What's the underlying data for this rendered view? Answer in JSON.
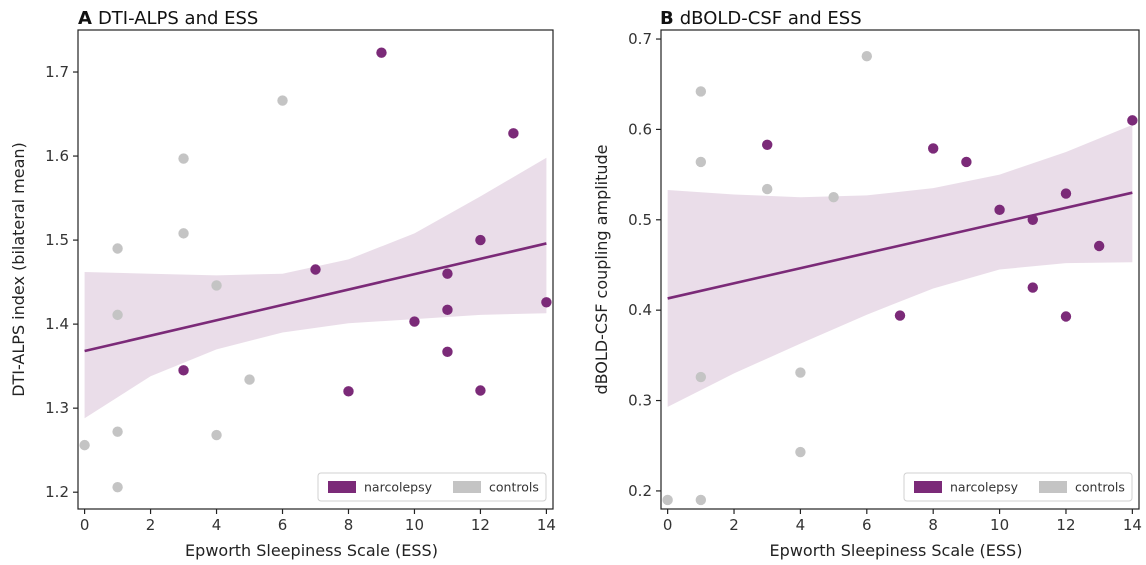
{
  "chart_data": [
    {
      "type": "scatter",
      "panel": "A",
      "title": "DTI-ALPS and ESS",
      "xlabel": "Epworth Sleepiness Scale (ESS)",
      "ylabel": "DTI-ALPS index (bilateral mean)",
      "xlim": [
        -0.2,
        14.2
      ],
      "ylim": [
        1.18,
        1.75
      ],
      "xticks": [
        "0",
        "2",
        "4",
        "6",
        "8",
        "10",
        "12",
        "14"
      ],
      "yticks": [
        "1.2",
        "1.3",
        "1.4",
        "1.5",
        "1.6",
        "1.7"
      ],
      "grid": false,
      "legend_position": "bottom-right",
      "series": [
        {
          "name": "narcolepsy",
          "color": "#7b2a78",
          "points": [
            [
              3,
              1.345
            ],
            [
              7,
              1.465
            ],
            [
              8,
              1.32
            ],
            [
              9,
              1.723
            ],
            [
              10,
              1.403
            ],
            [
              11,
              1.46
            ],
            [
              11,
              1.417
            ],
            [
              11,
              1.367
            ],
            [
              12,
              1.5
            ],
            [
              12,
              1.321
            ],
            [
              13,
              1.627
            ],
            [
              14,
              1.426
            ]
          ]
        },
        {
          "name": "controls",
          "color": "#c4c4c4",
          "points": [
            [
              0,
              1.256
            ],
            [
              1,
              1.49
            ],
            [
              1,
              1.411
            ],
            [
              1,
              1.272
            ],
            [
              1,
              1.206
            ],
            [
              3,
              1.597
            ],
            [
              3,
              1.508
            ],
            [
              4,
              1.446
            ],
            [
              4,
              1.268
            ],
            [
              5,
              1.334
            ],
            [
              6,
              1.666
            ]
          ]
        }
      ],
      "regression": {
        "color": "#7b2a78",
        "x": [
          0,
          14
        ],
        "y": [
          1.368,
          1.496
        ]
      },
      "ci_band": {
        "color": "#7b2a78",
        "x": [
          0,
          2,
          4,
          6,
          8,
          10,
          12,
          14
        ],
        "lower": [
          1.288,
          1.338,
          1.37,
          1.39,
          1.401,
          1.406,
          1.411,
          1.413
        ],
        "upper": [
          1.462,
          1.46,
          1.458,
          1.46,
          1.477,
          1.508,
          1.552,
          1.598
        ]
      }
    },
    {
      "type": "scatter",
      "panel": "B",
      "title": "dBOLD-CSF and ESS",
      "xlabel": "Epworth Sleepiness Scale (ESS)",
      "ylabel": "dBOLD-CSF coupling amplitude",
      "xlim": [
        -0.2,
        14.2
      ],
      "ylim": [
        0.18,
        0.71
      ],
      "xticks": [
        "0",
        "2",
        "4",
        "6",
        "8",
        "10",
        "12",
        "14"
      ],
      "yticks": [
        "0.2",
        "0.3",
        "0.4",
        "0.5",
        "0.6",
        "0.7"
      ],
      "grid": false,
      "legend_position": "bottom-right",
      "series": [
        {
          "name": "narcolepsy",
          "color": "#7b2a78",
          "points": [
            [
              3,
              0.583
            ],
            [
              7,
              0.394
            ],
            [
              8,
              0.579
            ],
            [
              9,
              0.564
            ],
            [
              10,
              0.511
            ],
            [
              11,
              0.5
            ],
            [
              11,
              0.425
            ],
            [
              12,
              0.529
            ],
            [
              12,
              0.393
            ],
            [
              13,
              0.471
            ],
            [
              14,
              0.61
            ]
          ]
        },
        {
          "name": "controls",
          "color": "#c4c4c4",
          "points": [
            [
              0,
              0.19
            ],
            [
              1,
              0.642
            ],
            [
              1,
              0.564
            ],
            [
              1,
              0.326
            ],
            [
              1,
              0.19
            ],
            [
              3,
              0.534
            ],
            [
              4,
              0.331
            ],
            [
              4,
              0.243
            ],
            [
              5,
              0.525
            ],
            [
              6,
              0.681
            ]
          ]
        }
      ],
      "regression": {
        "color": "#7b2a78",
        "x": [
          0,
          14
        ],
        "y": [
          0.413,
          0.53
        ]
      },
      "ci_band": {
        "color": "#7b2a78",
        "x": [
          0,
          2,
          4,
          6,
          8,
          10,
          12,
          14
        ],
        "lower": [
          0.293,
          0.33,
          0.363,
          0.395,
          0.424,
          0.445,
          0.452,
          0.453
        ],
        "upper": [
          0.533,
          0.528,
          0.525,
          0.527,
          0.535,
          0.55,
          0.575,
          0.605
        ]
      }
    }
  ]
}
